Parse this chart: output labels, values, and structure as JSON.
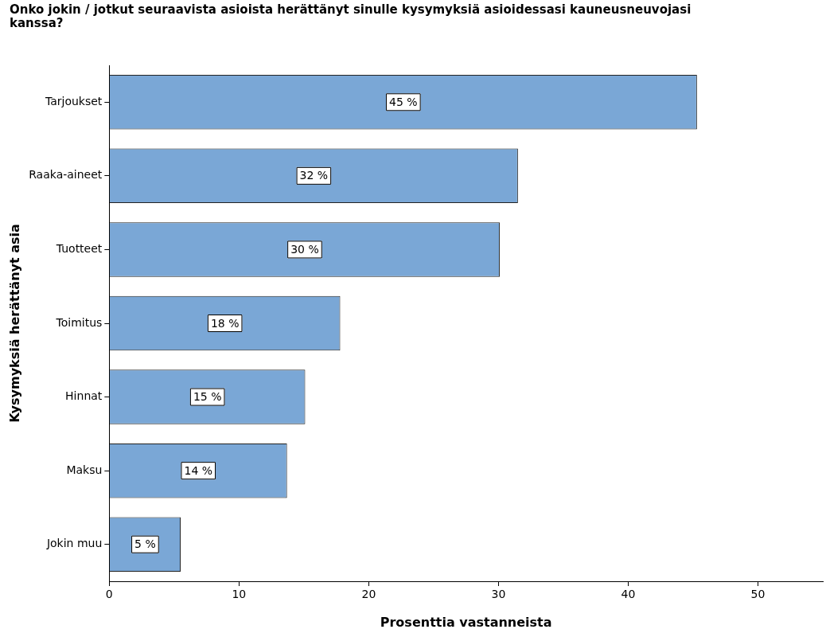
{
  "chart_data": {
    "type": "bar",
    "orientation": "horizontal",
    "title": "Onko jokin / jotkut seuraavista asioista herättänyt sinulle kysymyksiä asioidessasi kauneusneuvojasi kanssa?",
    "xlabel": "Prosenttia vastanneista",
    "ylabel": "Kysymyksiä herättänyt asia",
    "categories": [
      "Tarjoukset",
      "Raaka-aineet",
      "Tuotteet",
      "Toimitus",
      "Hinnat",
      "Maksu",
      "Jokin muu"
    ],
    "values": [
      45.3,
      31.5,
      30.1,
      17.8,
      15.1,
      13.7,
      5.5
    ],
    "value_labels": [
      "45 %",
      "32 %",
      "30 %",
      "18 %",
      "15 %",
      "14 %",
      "5 %"
    ],
    "color": "#7aa7d6",
    "xlim": [
      0,
      55
    ],
    "xticks": [
      0,
      10,
      20,
      30,
      40,
      50
    ],
    "grid": false,
    "legend": false
  }
}
